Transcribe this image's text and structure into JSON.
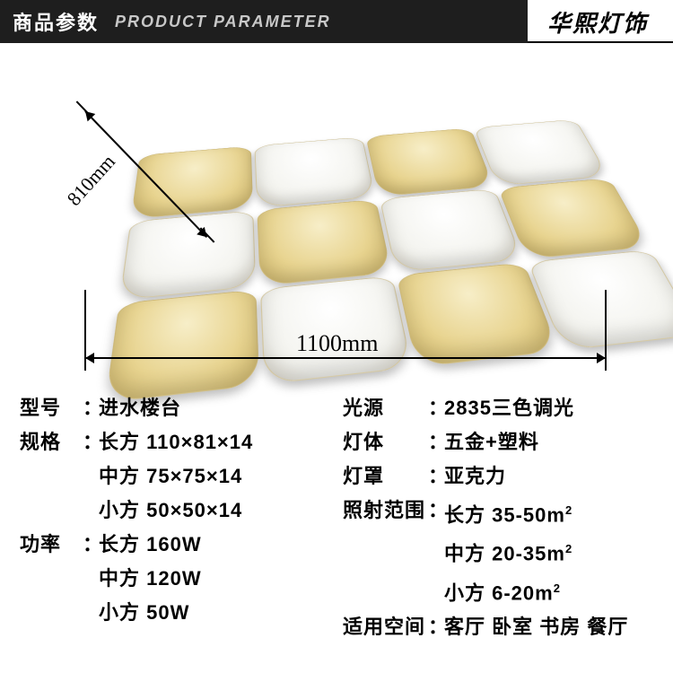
{
  "header": {
    "title_cn": "商品参数",
    "title_en": "PRODUCT PARAMETER",
    "brand": "华熙灯饰"
  },
  "diagram": {
    "depth_label": "810mm",
    "width_label": "1100mm",
    "grid": {
      "rows": 3,
      "cols": 4,
      "pattern": [
        [
          "gold",
          "white",
          "gold",
          "white"
        ],
        [
          "white",
          "gold",
          "white",
          "gold"
        ],
        [
          "gold",
          "white",
          "gold",
          "white"
        ]
      ],
      "gold_color": "#e8d490",
      "white_color": "#f5f4ee"
    }
  },
  "specs_left": [
    {
      "label": "型号",
      "value": "进水楼台"
    },
    {
      "label": "规格",
      "value": "长方 110×81×14"
    },
    {
      "label": "",
      "value": "中方 75×75×14",
      "indent": true
    },
    {
      "label": "",
      "value": "小方 50×50×14",
      "indent": true
    },
    {
      "label": "功率",
      "value": "长方 160W"
    },
    {
      "label": "",
      "value": "中方 120W",
      "indent": true
    },
    {
      "label": "",
      "value": "小方 50W",
      "indent": true
    }
  ],
  "specs_right": [
    {
      "label": "光源",
      "value": "2835三色调光"
    },
    {
      "label": "灯体",
      "value": "五金+塑料"
    },
    {
      "label": "灯罩",
      "value": "亚克力"
    },
    {
      "label": "照射范围",
      "value": "长方 35-50m",
      "sup": "2"
    },
    {
      "label": "",
      "value": "中方 20-35m",
      "sup": "2",
      "indent": true
    },
    {
      "label": "",
      "value": "小方 6-20m",
      "sup": "2",
      "indent": true
    },
    {
      "label": "适用空间",
      "value": "客厅 卧室 书房 餐厅"
    }
  ],
  "style": {
    "header_bg": "#1e1e1e",
    "text_color": "#000000",
    "font_size_spec": 22,
    "font_size_dim": 26
  }
}
